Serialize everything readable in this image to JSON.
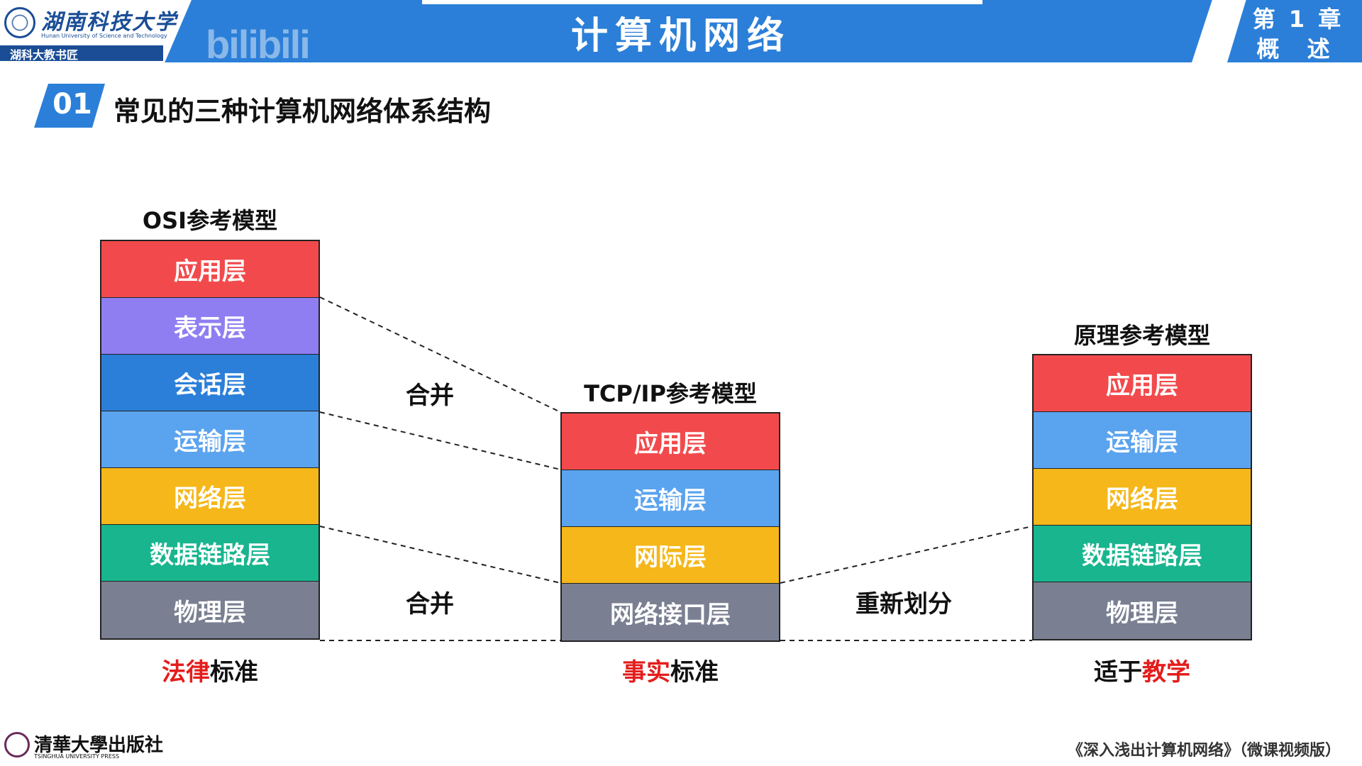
{
  "header": {
    "university_name_cn": "湖南科技大学",
    "university_name_en": "Hunan University of Science and Technology",
    "strip_text": "湖科大教书匠",
    "watermark": "bilibili",
    "title": "计算机网络",
    "chapter_number": "第 1 章",
    "chapter_name": "概 述"
  },
  "section": {
    "number": "01",
    "title": "常见的三种计算机网络体系结构"
  },
  "models": {
    "osi": {
      "title": "OSI参考模型",
      "layers": [
        "应用层",
        "表示层",
        "会话层",
        "运输层",
        "网络层",
        "数据链路层",
        "物理层"
      ],
      "caption_highlight": "法律",
      "caption_rest": "标准"
    },
    "tcpip": {
      "title": "TCP/IP参考模型",
      "layers": [
        "应用层",
        "运输层",
        "网际层",
        "网络接口层"
      ],
      "caption_highlight": "事实",
      "caption_rest": "标准"
    },
    "principle": {
      "title": "原理参考模型",
      "layers": [
        "应用层",
        "运输层",
        "网络层",
        "数据链路层",
        "物理层"
      ],
      "caption_prefix": "适于",
      "caption_highlight": "教学"
    }
  },
  "connector_labels": {
    "merge_top": "合并",
    "merge_bottom": "合并",
    "redivide": "重新划分"
  },
  "colors": {
    "header_blue": "#2b7fd8",
    "layer_app": "#f24a4c",
    "layer_presentation": "#8f7ef2",
    "layer_session": "#2b7fd8",
    "layer_transport": "#5aa3ef",
    "layer_network": "#f5b719",
    "layer_datalink": "#18b58e",
    "layer_physical": "#7a8092",
    "highlight_red": "#e41d1d"
  },
  "footer": {
    "publisher_cn": "清華大學出版社",
    "publisher_en": "TSINGHUA UNIVERSITY PRESS",
    "book_title": "《深入浅出计算机网络》（微课视频版）"
  }
}
